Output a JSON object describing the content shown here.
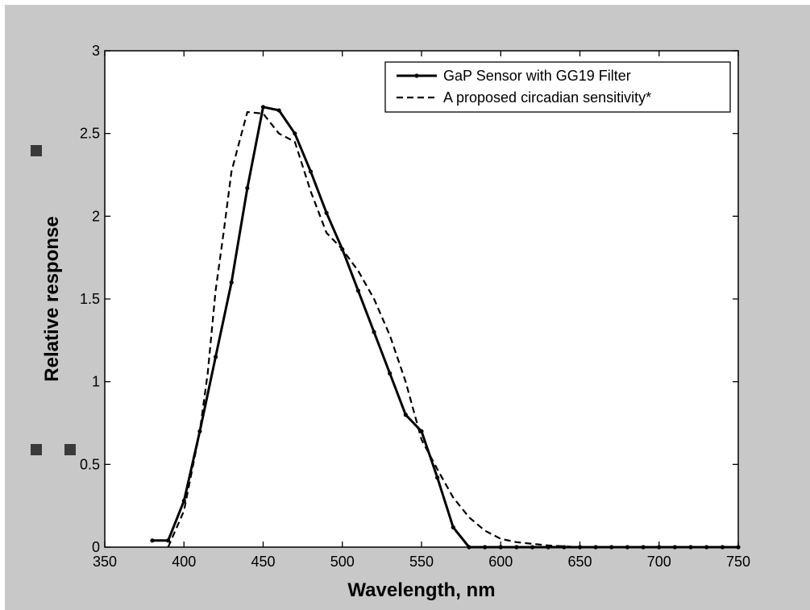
{
  "colors": {
    "figure_background": "#c8c8c8",
    "plot_background": "#ffffff",
    "line": "#000000",
    "stray_marker": "#3a3a3a"
  },
  "chart_data": {
    "type": "line",
    "title": "",
    "xlabel": "Wavelength, nm",
    "ylabel": "Relative response",
    "xlim": [
      350,
      750
    ],
    "ylim": [
      0,
      3
    ],
    "xticks": [
      350,
      400,
      450,
      500,
      550,
      600,
      650,
      700,
      750
    ],
    "yticks": [
      0,
      0.5,
      1,
      1.5,
      2,
      2.5,
      3
    ],
    "xtick_labels": [
      "350",
      "400",
      "450",
      "500",
      "550",
      "600",
      "650",
      "700",
      "750"
    ],
    "ytick_labels": [
      "0",
      "0.5",
      "1",
      "1.5",
      "2",
      "2.5",
      "3"
    ],
    "grid": false,
    "legend_position": "top-right",
    "series": [
      {
        "name": "GaP Sensor with GG19 Filter",
        "style": "solid-with-dot-markers",
        "x": [
          380,
          390,
          400,
          410,
          420,
          430,
          440,
          450,
          460,
          470,
          480,
          490,
          500,
          510,
          520,
          530,
          540,
          550,
          560,
          570,
          580,
          590,
          600,
          610,
          620,
          630,
          640,
          650,
          660,
          670,
          680,
          690,
          700,
          710,
          720,
          730,
          740,
          750
        ],
        "y": [
          0.04,
          0.04,
          0.28,
          0.7,
          1.15,
          1.6,
          2.17,
          2.66,
          2.64,
          2.5,
          2.27,
          2.02,
          1.8,
          1.55,
          1.3,
          1.05,
          0.8,
          0.7,
          0.42,
          0.12,
          0.0,
          0.0,
          0.0,
          0.0,
          0.0,
          0.0,
          0.0,
          0.0,
          0.0,
          0.0,
          0.0,
          0.0,
          0.0,
          0.0,
          0.0,
          0.0,
          0.0,
          0.0
        ]
      },
      {
        "name": "A proposed circadian sensitivity*",
        "style": "dashed",
        "x": [
          390,
          400,
          410,
          415,
          420,
          425,
          430,
          435,
          440,
          450,
          460,
          470,
          480,
          490,
          500,
          510,
          520,
          530,
          540,
          550,
          560,
          570,
          580,
          590,
          600,
          610,
          620,
          630,
          650,
          700,
          750
        ],
        "y": [
          0.0,
          0.22,
          0.7,
          1.05,
          1.55,
          1.9,
          2.27,
          2.45,
          2.63,
          2.62,
          2.5,
          2.45,
          2.15,
          1.9,
          1.8,
          1.67,
          1.5,
          1.28,
          1.0,
          0.65,
          0.47,
          0.3,
          0.18,
          0.1,
          0.05,
          0.03,
          0.02,
          0.01,
          0.0,
          0.0,
          0.0
        ]
      }
    ]
  },
  "stray_markers": [
    {
      "name": "square-marker-1"
    },
    {
      "name": "square-marker-2"
    },
    {
      "name": "square-marker-3"
    }
  ]
}
